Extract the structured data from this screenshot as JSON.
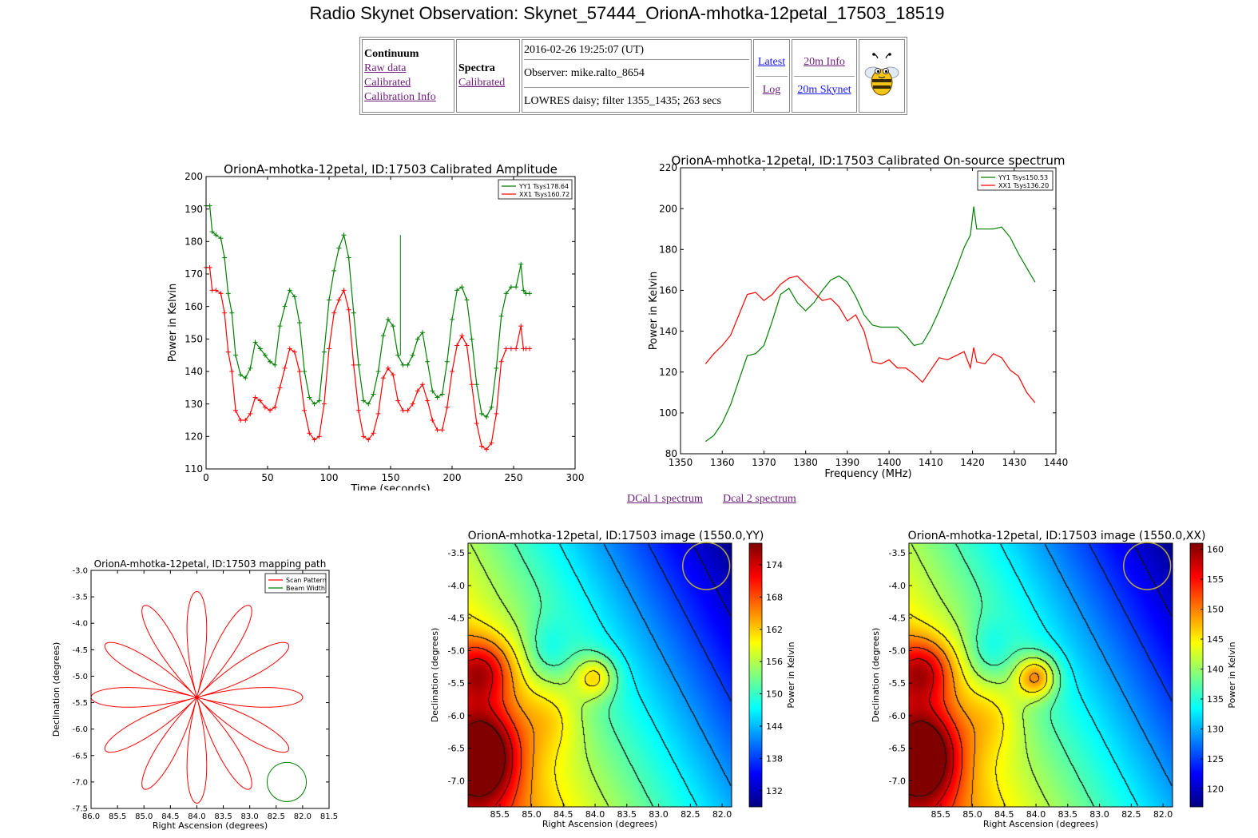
{
  "page_title": "Radio Skynet Observation: Skynet_57444_OrionA-mhotka-12petal_17503_18519",
  "nav": {
    "continuum_header": "Continuum",
    "continuum_links": [
      "Raw data",
      "Calibrated",
      "Calibration Info"
    ],
    "spectra_header": "Spectra",
    "spectra_links": [
      "Calibrated"
    ],
    "timestamp": "2016-02-26 19:25:07 (UT)",
    "observer": "Observer: mike.ralto_8654",
    "settings": "LOWRES daisy; filter 1355_1435; 263 secs",
    "latest": "Latest",
    "log": "Log",
    "info_20m": "20m Info",
    "skynet_20m": "20m Skynet"
  },
  "dcal_links": [
    "DCal 1 spectrum",
    "Dcal 2 spectrum"
  ],
  "chart_data": [
    {
      "type": "line",
      "title": "OrionA-mhotka-12petal, ID:17503 Calibrated Amplitude",
      "xlabel": "Time (seconds)",
      "ylabel": "Power in Kelvin",
      "xlim": [
        0,
        300
      ],
      "ylim": [
        110,
        200
      ],
      "xticks": [
        0,
        50,
        100,
        150,
        200,
        250,
        300
      ],
      "yticks": [
        110,
        120,
        130,
        140,
        150,
        160,
        170,
        180,
        190,
        200
      ],
      "legend": "top-right",
      "colors": {
        "YY1": "#008000",
        "XX1": "#ff0000"
      },
      "series": [
        {
          "name": "YY1 Tsys178.64",
          "x": [
            0,
            3,
            5,
            8,
            12,
            15,
            18,
            21,
            24,
            28,
            32,
            36,
            40,
            44,
            48,
            52,
            56,
            60,
            64,
            68,
            72,
            76,
            80,
            84,
            88,
            92,
            96,
            100,
            104,
            108,
            112,
            116,
            120,
            124,
            128,
            132,
            136,
            140,
            144,
            148,
            152,
            156,
            160,
            164,
            168,
            172,
            176,
            180,
            184,
            188,
            192,
            196,
            200,
            204,
            208,
            212,
            216,
            220,
            224,
            228,
            232,
            236,
            240,
            244,
            248,
            252,
            256,
            258,
            260,
            263
          ],
          "values": [
            191,
            191,
            183,
            182,
            181,
            175,
            164,
            158,
            145,
            139,
            138,
            141,
            149,
            147,
            145,
            143,
            142,
            154,
            160,
            165,
            163,
            155,
            140,
            132,
            130,
            131,
            146,
            162,
            171,
            178,
            182,
            175,
            158,
            142,
            131,
            130,
            133,
            140,
            151,
            156,
            154,
            145,
            142,
            142,
            145,
            150,
            152,
            143,
            134,
            132,
            133,
            143,
            156,
            165,
            166,
            162,
            150,
            136,
            127,
            126,
            129,
            141,
            157,
            164,
            166,
            166,
            173,
            165,
            164,
            164
          ]
        },
        {
          "name": "XX1 Tsys160.72",
          "x": [
            0,
            3,
            5,
            8,
            12,
            15,
            18,
            21,
            24,
            28,
            32,
            36,
            40,
            44,
            48,
            52,
            56,
            60,
            64,
            68,
            72,
            76,
            80,
            84,
            88,
            92,
            96,
            100,
            104,
            108,
            112,
            116,
            120,
            124,
            128,
            132,
            136,
            140,
            144,
            148,
            152,
            156,
            160,
            164,
            168,
            172,
            176,
            180,
            184,
            188,
            192,
            196,
            200,
            204,
            208,
            212,
            216,
            220,
            224,
            228,
            232,
            236,
            240,
            244,
            248,
            252,
            256,
            258,
            260,
            263
          ],
          "values": [
            172,
            172,
            165,
            165,
            164,
            158,
            146,
            140,
            128,
            125,
            125,
            127,
            132,
            131,
            129,
            128,
            129,
            135,
            141,
            147,
            146,
            140,
            128,
            121,
            119,
            120,
            130,
            147,
            158,
            162,
            165,
            159,
            142,
            128,
            120,
            119,
            121,
            127,
            138,
            141,
            139,
            131,
            128,
            128,
            130,
            134,
            136,
            131,
            125,
            122,
            122,
            129,
            140,
            148,
            151,
            148,
            136,
            124,
            117,
            116,
            118,
            127,
            143,
            147,
            147,
            147,
            154,
            147,
            147,
            147
          ]
        }
      ]
    },
    {
      "type": "line",
      "title": "OrionA-mhotka-12petal, ID:17503 Calibrated On-source spectrum",
      "xlabel": "Frequency (MHz)",
      "ylabel": "Power in Kelvin",
      "xlim": [
        1350,
        1440
      ],
      "ylim": [
        80,
        220
      ],
      "xticks": [
        1350,
        1360,
        1370,
        1380,
        1390,
        1400,
        1410,
        1420,
        1430,
        1440
      ],
      "yticks": [
        80,
        100,
        120,
        140,
        160,
        180,
        200,
        220
      ],
      "legend": "top-right",
      "series": [
        {
          "name": "YY1 Tsys150.53",
          "x": [
            1356,
            1358,
            1360,
            1362,
            1364,
            1366,
            1368,
            1370,
            1372,
            1374,
            1376,
            1378,
            1380,
            1382,
            1384,
            1386,
            1388,
            1390,
            1392,
            1394,
            1396,
            1398,
            1400,
            1402,
            1404,
            1406,
            1408,
            1410,
            1412,
            1414,
            1416,
            1418,
            1419.5,
            1420.3,
            1421,
            1423,
            1425,
            1427,
            1429,
            1431,
            1433,
            1435
          ],
          "values": [
            86,
            89,
            95,
            104,
            116,
            128,
            129,
            133,
            145,
            158,
            161,
            154,
            150,
            154,
            160,
            165,
            167,
            164,
            157,
            148,
            143,
            142,
            142,
            142,
            138,
            133,
            134,
            141,
            150,
            160,
            170,
            181,
            187,
            201,
            190,
            190,
            190,
            191,
            186,
            178,
            171,
            164
          ]
        },
        {
          "name": "XX1 Tsys136.20",
          "x": [
            1356,
            1358,
            1360,
            1362,
            1364,
            1366,
            1368,
            1370,
            1372,
            1374,
            1376,
            1378,
            1380,
            1382,
            1384,
            1386,
            1388,
            1390,
            1392,
            1394,
            1396,
            1398,
            1400,
            1402,
            1404,
            1406,
            1408,
            1410,
            1412,
            1414,
            1416,
            1418,
            1419.5,
            1420.3,
            1421,
            1423,
            1425,
            1427,
            1429,
            1431,
            1433,
            1435
          ],
          "values": [
            124,
            129,
            133,
            138,
            148,
            158,
            159,
            155,
            158,
            163,
            166,
            167,
            163,
            159,
            155,
            156,
            152,
            145,
            148,
            140,
            125,
            124,
            126,
            122,
            122,
            119,
            115,
            121,
            127,
            126,
            128,
            130,
            122,
            132,
            125,
            124,
            129,
            127,
            121,
            118,
            110,
            105
          ]
        }
      ]
    },
    {
      "type": "line",
      "title": "OrionA-mhotka-12petal, ID:17503 mapping path",
      "xlabel": "Right Ascension (degrees)",
      "ylabel": "Declination (degrees)",
      "xlim": [
        86.0,
        81.5
      ],
      "ylim": [
        -7.5,
        -3.0
      ],
      "xticks": [
        81.5,
        82.0,
        82.5,
        83.0,
        83.5,
        84.0,
        84.5,
        85.0,
        85.5,
        86.0
      ],
      "yticks": [
        -3.0,
        -3.5,
        -4.0,
        -4.5,
        -5.0,
        -5.5,
        -6.0,
        -6.5,
        -7.0,
        -7.5
      ],
      "legend": "top-right",
      "center": [
        84.0,
        -5.4
      ],
      "petal_count": 12,
      "petal_radius_deg": 2.0,
      "beam_center": [
        82.3,
        -7.0
      ],
      "beam_radius_deg": 0.37,
      "series": [
        {
          "name": "Scan Pattern",
          "color": "#ff0000"
        },
        {
          "name": "Beam Width",
          "color": "#008000"
        }
      ]
    },
    {
      "type": "heatmap",
      "title": "OrionA-mhotka-12petal, ID:17503 image (1550.0,YY)",
      "xlabel": "Right Ascension (degrees)",
      "ylabel": "Declination (degrees)",
      "colorbar_label": "Power in Kelvin",
      "xlim": [
        86.0,
        81.85
      ],
      "ylim": [
        -7.4,
        -3.35
      ],
      "xticks": [
        85.5,
        85.0,
        84.5,
        84.0,
        83.5,
        83.0,
        82.5,
        82.0
      ],
      "yticks": [
        -3.5,
        -4.0,
        -4.5,
        -5.0,
        -5.5,
        -6.0,
        -6.5,
        -7.0
      ],
      "crange": [
        129,
        178
      ],
      "cticks": [
        132,
        138,
        144,
        150,
        156,
        162,
        168,
        174
      ],
      "peak": [
        84.0,
        -5.4
      ],
      "beam_center": [
        82.25,
        -3.7
      ],
      "beam_radius_deg": 0.37
    },
    {
      "type": "heatmap",
      "title": "OrionA-mhotka-12petal, ID:17503 image (1550.0,XX)",
      "xlabel": "Right Ascension (degrees)",
      "ylabel": "Declination (degrees)",
      "colorbar_label": "Power in Kelvin",
      "xlim": [
        86.0,
        81.85
      ],
      "ylim": [
        -7.4,
        -3.35
      ],
      "xticks": [
        85.5,
        85.0,
        84.5,
        84.0,
        83.5,
        83.0,
        82.5,
        82.0
      ],
      "yticks": [
        -3.5,
        -4.0,
        -4.5,
        -5.0,
        -5.5,
        -6.0,
        -6.5,
        -7.0
      ],
      "crange": [
        117,
        161
      ],
      "cticks": [
        120,
        125,
        130,
        135,
        140,
        145,
        150,
        155,
        160
      ],
      "peak": [
        84.0,
        -5.4
      ],
      "beam_center": [
        82.25,
        -3.7
      ],
      "beam_radius_deg": 0.37
    }
  ]
}
